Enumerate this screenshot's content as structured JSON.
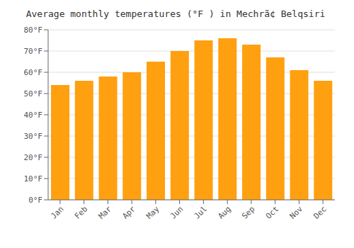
{
  "chart_data": {
    "type": "bar",
    "title": "Average monthly temperatures (°F ) in Mechrã¢ Belqsiri",
    "categories": [
      "Jan",
      "Feb",
      "Mar",
      "Apr",
      "May",
      "Jun",
      "Jul",
      "Aug",
      "Sep",
      "Oct",
      "Nov",
      "Dec"
    ],
    "values": [
      54,
      56,
      58,
      60,
      65,
      70,
      75,
      76,
      73,
      67,
      61,
      56
    ],
    "color": "#FFA010",
    "ylim": [
      0,
      80
    ],
    "yticks": [
      {
        "value": 0,
        "label": "0°F"
      },
      {
        "value": 10,
        "label": "10°F"
      },
      {
        "value": 20,
        "label": "20°F"
      },
      {
        "value": 30,
        "label": "30°F"
      },
      {
        "value": 40,
        "label": "40°F"
      },
      {
        "value": 50,
        "label": "50°F"
      },
      {
        "value": 60,
        "label": "60°F"
      },
      {
        "value": 70,
        "label": "70°F"
      },
      {
        "value": 80,
        "label": "80°F"
      }
    ],
    "grid": true
  }
}
